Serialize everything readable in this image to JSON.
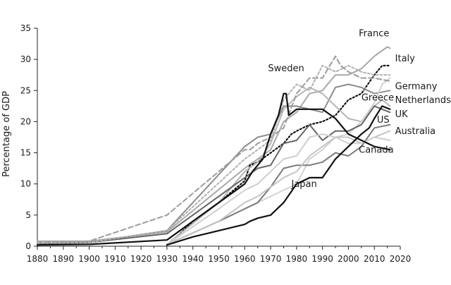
{
  "chart_data": {
    "type": "line",
    "title": "",
    "xlabel": "",
    "ylabel": "Percentage of GDP",
    "xlim": [
      1880,
      2020
    ],
    "ylim": [
      0,
      35
    ],
    "xticks": [
      1880,
      1890,
      1900,
      1910,
      1920,
      1930,
      1940,
      1950,
      1960,
      1970,
      1980,
      1990,
      2000,
      2010,
      2020
    ],
    "yticks": [
      0,
      5,
      10,
      15,
      20,
      25,
      30,
      35
    ],
    "grid": false,
    "legend": "none",
    "series": [
      {
        "name": "France",
        "color": "#a8a8a8",
        "dash": "none",
        "width": 2,
        "points": [
          [
            1880,
            0.8
          ],
          [
            1900,
            0.8
          ],
          [
            1930,
            2.3
          ],
          [
            1960,
            12.5
          ],
          [
            1965,
            14
          ],
          [
            1970,
            15.5
          ],
          [
            1975,
            20
          ],
          [
            1980,
            21.5
          ],
          [
            1985,
            24.5
          ],
          [
            1990,
            25
          ],
          [
            1995,
            27.5
          ],
          [
            2000,
            27.5
          ],
          [
            2005,
            28.5
          ],
          [
            2010,
            30.5
          ],
          [
            2015,
            32
          ],
          [
            2016,
            31.8
          ]
        ]
      },
      {
        "name": "Italy",
        "color": "#111111",
        "dash": "2,3",
        "width": 2.2,
        "points": [
          [
            1930,
            0.2
          ],
          [
            1935,
            2
          ],
          [
            1940,
            4
          ],
          [
            1950,
            7
          ],
          [
            1960,
            10.5
          ],
          [
            1962,
            13
          ],
          [
            1965,
            13.5
          ],
          [
            1970,
            15
          ],
          [
            1975,
            16.5
          ],
          [
            1978,
            18
          ],
          [
            1980,
            18.5
          ],
          [
            1985,
            19.5
          ],
          [
            1990,
            20
          ],
          [
            1995,
            21
          ],
          [
            2000,
            23.5
          ],
          [
            2005,
            24.5
          ],
          [
            2010,
            27.5
          ],
          [
            2013,
            29
          ],
          [
            2016,
            29
          ]
        ]
      },
      {
        "name": "Germany",
        "color": "#8c8c8c",
        "dash": "none",
        "width": 2,
        "points": [
          [
            1880,
            0.5
          ],
          [
            1900,
            0.6
          ],
          [
            1930,
            2.5
          ],
          [
            1960,
            16
          ],
          [
            1965,
            17.5
          ],
          [
            1970,
            18
          ],
          [
            1975,
            22.5
          ],
          [
            1980,
            22.5
          ],
          [
            1985,
            22
          ],
          [
            1990,
            21.5
          ],
          [
            1995,
            25.5
          ],
          [
            2000,
            26
          ],
          [
            2005,
            25.5
          ],
          [
            2010,
            24.5
          ],
          [
            2016,
            25
          ]
        ]
      },
      {
        "name": "Netherlands",
        "color": "#b5b5b5",
        "dash": "none",
        "width": 2,
        "points": [
          [
            1930,
            0.3
          ],
          [
            1950,
            7
          ],
          [
            1960,
            12
          ],
          [
            1965,
            13.5
          ],
          [
            1970,
            16.5
          ],
          [
            1975,
            22
          ],
          [
            1980,
            24
          ],
          [
            1985,
            25.5
          ],
          [
            1990,
            24.5
          ],
          [
            1995,
            22.5
          ],
          [
            2000,
            20.5
          ],
          [
            2005,
            20
          ],
          [
            2010,
            22.5
          ],
          [
            2013,
            23.5
          ],
          [
            2016,
            22.5
          ]
        ]
      },
      {
        "name": "Greece",
        "color": "#d3d3d3",
        "dash": "none",
        "width": 2,
        "points": [
          [
            1930,
            0.2
          ],
          [
            1950,
            4
          ],
          [
            1960,
            6
          ],
          [
            1970,
            8
          ],
          [
            1975,
            9
          ],
          [
            1980,
            10
          ],
          [
            1985,
            14
          ],
          [
            1990,
            15.5
          ],
          [
            1995,
            17.5
          ],
          [
            2000,
            18
          ],
          [
            2005,
            20
          ],
          [
            2010,
            23
          ],
          [
            2013,
            26
          ],
          [
            2016,
            27
          ]
        ]
      },
      {
        "name": "UK",
        "color": "#666666",
        "dash": "none",
        "width": 2,
        "points": [
          [
            1880,
            0.4
          ],
          [
            1900,
            0.6
          ],
          [
            1930,
            2
          ],
          [
            1960,
            11
          ],
          [
            1965,
            12.5
          ],
          [
            1970,
            13
          ],
          [
            1975,
            16.5
          ],
          [
            1980,
            17
          ],
          [
            1985,
            19.5
          ],
          [
            1990,
            17
          ],
          [
            1995,
            18.5
          ],
          [
            2000,
            18.5
          ],
          [
            2005,
            19.5
          ],
          [
            2010,
            22.5
          ],
          [
            2016,
            21.5
          ]
        ]
      },
      {
        "name": "US",
        "color": "#7a7a7a",
        "dash": "none",
        "width": 2,
        "points": [
          [
            1930,
            0.3
          ],
          [
            1950,
            4
          ],
          [
            1960,
            6
          ],
          [
            1965,
            7
          ],
          [
            1970,
            9.5
          ],
          [
            1975,
            12.5
          ],
          [
            1980,
            13
          ],
          [
            1985,
            13
          ],
          [
            1990,
            13.5
          ],
          [
            1995,
            15
          ],
          [
            2000,
            14.5
          ],
          [
            2005,
            16
          ],
          [
            2010,
            19
          ],
          [
            2016,
            19.5
          ]
        ]
      },
      {
        "name": "Australia",
        "color": "#c4c4c4",
        "dash": "none",
        "width": 2,
        "points": [
          [
            1930,
            0.3
          ],
          [
            1950,
            4
          ],
          [
            1960,
            7
          ],
          [
            1965,
            8
          ],
          [
            1970,
            9.5
          ],
          [
            1975,
            11
          ],
          [
            1980,
            12
          ],
          [
            1985,
            14.5
          ],
          [
            1990,
            16
          ],
          [
            1995,
            17.5
          ],
          [
            2000,
            17.5
          ],
          [
            2005,
            16.5
          ],
          [
            2010,
            17.5
          ],
          [
            2016,
            18.5
          ]
        ]
      },
      {
        "name": "Canada",
        "color": "#cfcfcf",
        "dash": "none",
        "width": 2,
        "points": [
          [
            1930,
            0.3
          ],
          [
            1950,
            6
          ],
          [
            1960,
            9
          ],
          [
            1965,
            10
          ],
          [
            1970,
            12
          ],
          [
            1975,
            14
          ],
          [
            1980,
            14.5
          ],
          [
            1985,
            17.5
          ],
          [
            1990,
            18
          ],
          [
            1995,
            17.5
          ],
          [
            2000,
            16.5
          ],
          [
            2005,
            16.5
          ],
          [
            2010,
            17.5
          ],
          [
            2016,
            17
          ]
        ]
      },
      {
        "name": "Sweden",
        "color": "#9c9c9c",
        "dash": "7,4",
        "width": 2,
        "points": [
          [
            1880,
            0.6
          ],
          [
            1900,
            0.8
          ],
          [
            1930,
            5
          ],
          [
            1960,
            15.5
          ],
          [
            1962,
            15.5
          ],
          [
            1965,
            16.5
          ],
          [
            1970,
            17.5
          ],
          [
            1975,
            19
          ],
          [
            1980,
            24.5
          ],
          [
            1985,
            27
          ],
          [
            1990,
            27
          ],
          [
            1995,
            30.5
          ],
          [
            1997,
            29
          ],
          [
            2000,
            28
          ],
          [
            2005,
            27
          ],
          [
            2010,
            27
          ],
          [
            2016,
            26.5
          ]
        ]
      },
      {
        "name": "",
        "color": "#b0b0b0",
        "dash": "3,3",
        "width": 2,
        "points": [
          [
            1880,
            0.5
          ],
          [
            1900,
            0.6
          ],
          [
            1930,
            2.5
          ],
          [
            1960,
            14
          ],
          [
            1965,
            15.5
          ],
          [
            1970,
            17
          ],
          [
            1975,
            23.5
          ],
          [
            1980,
            26
          ],
          [
            1985,
            25
          ],
          [
            1990,
            29
          ],
          [
            1995,
            28
          ],
          [
            2000,
            29
          ],
          [
            2005,
            28
          ],
          [
            2010,
            27.5
          ],
          [
            2016,
            27.5
          ]
        ]
      },
      {
        "name": "Japan",
        "color": "#111111",
        "dash": "none",
        "width": 2.2,
        "points": [
          [
            1930,
            0.2
          ],
          [
            1940,
            1.5
          ],
          [
            1950,
            2.5
          ],
          [
            1960,
            3.5
          ],
          [
            1962,
            4
          ],
          [
            1965,
            4.5
          ],
          [
            1970,
            5
          ],
          [
            1975,
            7
          ],
          [
            1980,
            10
          ],
          [
            1985,
            11
          ],
          [
            1990,
            11
          ],
          [
            1995,
            14
          ],
          [
            2000,
            16
          ],
          [
            2005,
            18
          ],
          [
            2008,
            19
          ],
          [
            2010,
            20.5
          ],
          [
            2013,
            22.5
          ],
          [
            2016,
            22
          ]
        ]
      },
      {
        "name": "",
        "color": "#111111",
        "dash": "none",
        "width": 2.2,
        "points": [
          [
            1880,
            0.2
          ],
          [
            1900,
            0.3
          ],
          [
            1930,
            1
          ],
          [
            1960,
            10
          ],
          [
            1963,
            12
          ],
          [
            1967,
            14
          ],
          [
            1970,
            18
          ],
          [
            1973,
            21
          ],
          [
            1975,
            24.5
          ],
          [
            1976,
            24.5
          ],
          [
            1977,
            21
          ],
          [
            1980,
            22
          ],
          [
            1985,
            22
          ],
          [
            1990,
            22
          ],
          [
            1995,
            20.5
          ],
          [
            2000,
            18
          ],
          [
            2005,
            17
          ],
          [
            2010,
            16
          ],
          [
            2016,
            15.5
          ]
        ]
      }
    ],
    "labels": [
      {
        "text": "France",
        "xv": 2004,
        "yv": 33.7
      },
      {
        "text": "Italy",
        "xv": 2018,
        "yv": 29.7
      },
      {
        "text": "Sweden",
        "xv": 1969,
        "yv": 28.1
      },
      {
        "text": "Germany",
        "xv": 2018,
        "yv": 25.2
      },
      {
        "text": "Netherlands",
        "xv": 2018,
        "yv": 23.0
      },
      {
        "text": "Greece",
        "xv": 2005,
        "yv": 23.4
      },
      {
        "text": "UK",
        "xv": 2018,
        "yv": 20.7
      },
      {
        "text": "US",
        "xv": 2011,
        "yv": 19.8
      },
      {
        "text": "Australia",
        "xv": 2018,
        "yv": 18.0
      },
      {
        "text": "Canada",
        "xv": 2004,
        "yv": 15.0
      },
      {
        "text": "Japan",
        "xv": 1978,
        "yv": 9.5
      }
    ]
  }
}
